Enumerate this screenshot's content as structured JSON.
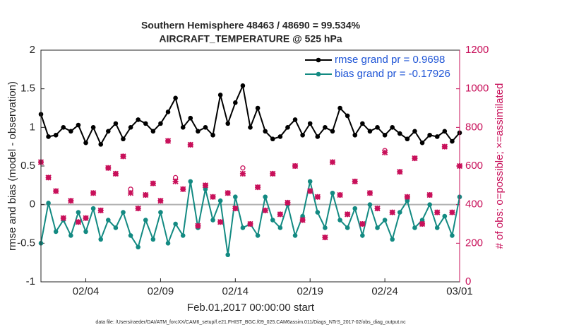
{
  "chart_data": {
    "type": "line",
    "title": "Southern Hemisphere 48463 / 48690 = 99.534%",
    "subtitle": "AIRCRAFT_TEMPERATURE @ 525 hPa",
    "xlabel": "Feb.01,2017 00:00:00 start",
    "ylabel": "rmse and bias (model - observation)",
    "y2label": "# of obs: o=possible; ×=assimilated",
    "footnote": "data file: /Users/raeder/DAI/ATM_forcXX/CAM6_setup/f.e21.FHIST_BGC.f09_025.CAM6assim.011/Diags_NTrS_2017-02/obs_diag_output.nc",
    "xlim": [
      0,
      28
    ],
    "xticks": [
      {
        "value": 3,
        "label": "02/04"
      },
      {
        "value": 8,
        "label": "02/09"
      },
      {
        "value": 13,
        "label": "02/14"
      },
      {
        "value": 18,
        "label": "02/19"
      },
      {
        "value": 23,
        "label": "02/24"
      },
      {
        "value": 28,
        "label": "03/01"
      }
    ],
    "ylim": [
      -1,
      2
    ],
    "yticks": [
      -1,
      -0.5,
      0,
      0.5,
      1,
      1.5,
      2
    ],
    "y2lim": [
      0,
      1200
    ],
    "y2ticks": [
      0,
      200,
      400,
      600,
      800,
      1000,
      1200
    ],
    "legend": "upper right",
    "x": [
      0,
      0.5,
      1,
      1.5,
      2,
      2.5,
      3,
      3.5,
      4,
      4.5,
      5,
      5.5,
      6,
      6.5,
      7,
      7.5,
      8,
      8.5,
      9,
      9.5,
      10,
      10.5,
      11,
      11.5,
      12,
      12.5,
      13,
      13.5,
      14,
      14.5,
      15,
      15.5,
      16,
      16.5,
      17,
      17.5,
      18,
      18.5,
      19,
      19.5,
      20,
      20.5,
      21,
      21.5,
      22,
      22.5,
      23,
      23.5,
      24,
      24.5,
      25,
      25.5,
      26,
      26.5,
      27,
      27.5,
      28
    ],
    "series": [
      {
        "name": "rmse grand pr = 0.9698",
        "color": "#000000",
        "marker": "dot",
        "line": true,
        "values": [
          1.17,
          0.88,
          0.9,
          1.0,
          0.95,
          1.03,
          0.8,
          1.0,
          0.78,
          0.95,
          1.05,
          0.85,
          1.0,
          1.1,
          1.05,
          0.95,
          1.05,
          1.2,
          1.38,
          1.0,
          1.12,
          0.95,
          1.0,
          0.9,
          1.42,
          1.05,
          1.32,
          1.54,
          1.0,
          1.25,
          0.95,
          0.85,
          0.88,
          1.0,
          1.1,
          0.9,
          1.05,
          0.88,
          1.0,
          0.95,
          1.25,
          1.15,
          0.9,
          1.05,
          0.95,
          1.0,
          0.9,
          1.0,
          0.92,
          0.85,
          0.95,
          0.8,
          0.9,
          0.88,
          0.95,
          0.82,
          0.93
        ]
      },
      {
        "name": "bias grand pr = -0.17926",
        "color": "#138a82",
        "marker": "dot",
        "line": true,
        "values": [
          -0.5,
          0.02,
          -0.35,
          -0.2,
          -0.4,
          -0.1,
          -0.35,
          -0.05,
          -0.45,
          -0.2,
          -0.3,
          -0.1,
          -0.4,
          -0.55,
          -0.2,
          -0.45,
          -0.1,
          -0.5,
          -0.25,
          -0.4,
          0.3,
          -0.3,
          0.2,
          -0.2,
          0.05,
          -0.65,
          0.1,
          -0.3,
          -0.25,
          -0.4,
          0.1,
          -0.2,
          -0.3,
          0.0,
          -0.4,
          -0.15,
          0.3,
          -0.1,
          -0.3,
          0.15,
          -0.2,
          -0.3,
          -0.05,
          -0.4,
          0.0,
          -0.3,
          -0.2,
          -0.45,
          -0.1,
          0.05,
          -0.3,
          -0.2,
          0.0,
          -0.3,
          -0.15,
          -0.4,
          0.1
        ]
      },
      {
        "color": "#c8105a",
        "marker": "circle",
        "line": false,
        "axis": "y2",
        "values": [
          620,
          540,
          470,
          330,
          420,
          310,
          330,
          460,
          370,
          590,
          560,
          650,
          480,
          380,
          450,
          510,
          420,
          730,
          540,
          480,
          710,
          290,
          500,
          440,
          310,
          460,
          380,
          590,
          300,
          490,
          370,
          560,
          350,
          410,
          600,
          320,
          470,
          440,
          230,
          620,
          450,
          350,
          520,
          300,
          460,
          380,
          680,
          360,
          570,
          440,
          640,
          300,
          450,
          360,
          700,
          360,
          600
        ]
      },
      {
        "color": "#c8105a",
        "marker": "cross",
        "line": false,
        "axis": "y2",
        "values": [
          620,
          540,
          470,
          330,
          420,
          310,
          330,
          460,
          370,
          590,
          560,
          650,
          460,
          380,
          450,
          510,
          420,
          730,
          520,
          480,
          710,
          290,
          500,
          440,
          310,
          460,
          380,
          560,
          300,
          490,
          370,
          560,
          350,
          410,
          600,
          320,
          470,
          440,
          230,
          620,
          450,
          350,
          520,
          300,
          460,
          380,
          670,
          360,
          570,
          440,
          640,
          300,
          450,
          360,
          700,
          360,
          600
        ]
      }
    ]
  }
}
